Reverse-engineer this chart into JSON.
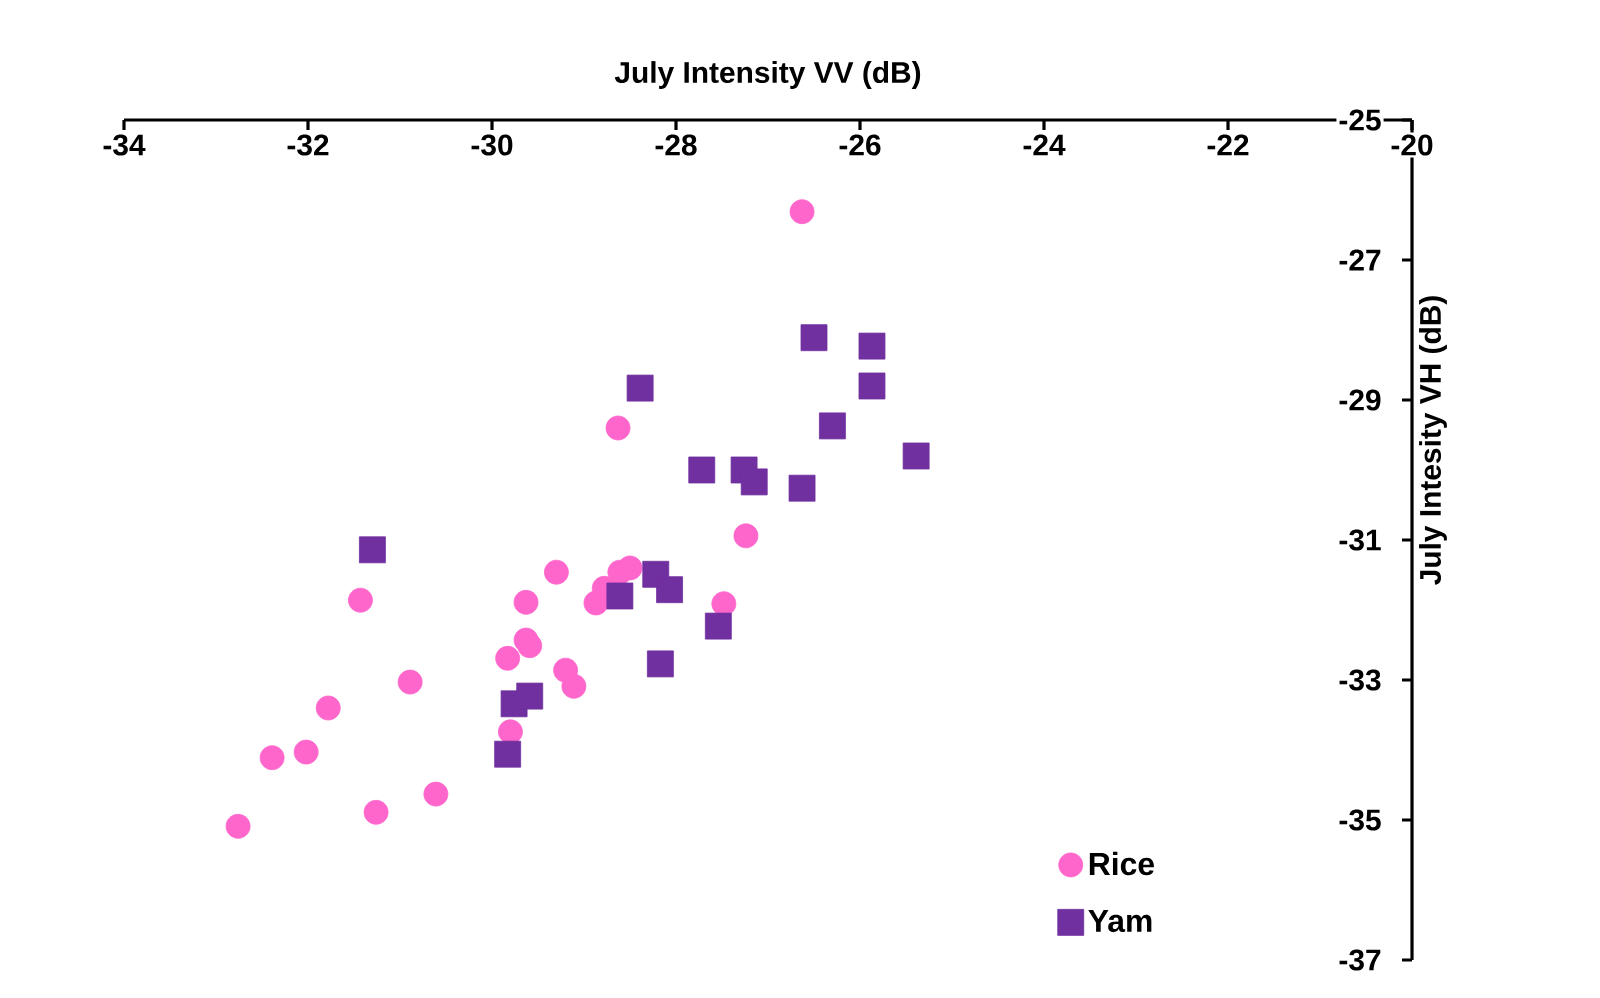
{
  "chart_data": {
    "type": "scatter",
    "xlabel": "July Intensity VV (dB)",
    "ylabel": "July Intesity VH (dB)",
    "xlim": [
      -34,
      -20
    ],
    "xticks": [
      -34,
      -32,
      -30,
      -28,
      -26,
      -24,
      -22,
      -20
    ],
    "ylim": [
      -37,
      -25
    ],
    "yticks": [
      -25,
      -27,
      -29,
      -31,
      -33,
      -35,
      -37
    ],
    "grid": false,
    "legend": "bottom right",
    "series": [
      {
        "name": "Rice",
        "color": "#ff66cc",
        "marker": "circle",
        "x": [
          -32.76,
          -32.39,
          -32.02,
          -31.78,
          -31.43,
          -31.26,
          -30.89,
          -30.61,
          -29.83,
          -29.8,
          -29.63,
          -29.63,
          -29.59,
          -29.3,
          -29.2,
          -29.11,
          -28.87,
          -28.78,
          -28.61,
          -28.5,
          -28.63,
          -27.48,
          -27.24,
          -26.63
        ],
        "values": [
          -35.09,
          -34.11,
          -34.03,
          -33.4,
          -31.86,
          -34.89,
          -33.03,
          -34.63,
          -32.69,
          -33.74,
          -31.89,
          -32.43,
          -32.51,
          -31.46,
          -32.86,
          -33.09,
          -31.9,
          -31.69,
          -31.46,
          -31.4,
          -29.4,
          -31.91,
          -30.94,
          -26.31
        ]
      },
      {
        "name": "Yam",
        "color": "#7030a0",
        "marker": "square",
        "x": [
          -31.3,
          -29.83,
          -29.76,
          -29.59,
          -28.61,
          -28.39,
          -28.22,
          -28.07,
          -28.17,
          -27.54,
          -27.72,
          -27.26,
          -27.15,
          -26.63,
          -26.5,
          -25.87,
          -25.87,
          -26.3,
          -25.39
        ],
        "values": [
          -31.14,
          -34.06,
          -33.34,
          -33.23,
          -31.8,
          -28.83,
          -31.49,
          -31.71,
          -32.77,
          -32.23,
          -30.0,
          -30.0,
          -30.17,
          -30.26,
          -28.11,
          -28.23,
          -28.8,
          -29.37,
          -29.8
        ]
      }
    ]
  }
}
